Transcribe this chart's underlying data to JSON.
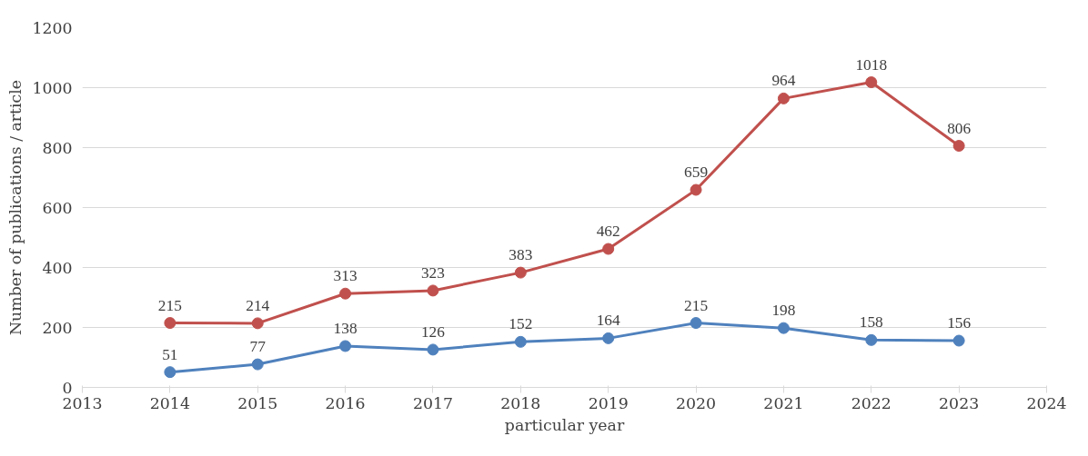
{
  "chart_data": {
    "type": "line",
    "xlabel": "particular year",
    "ylabel": "Number of publications / article",
    "x": [
      2014,
      2015,
      2016,
      2017,
      2018,
      2019,
      2020,
      2021,
      2022,
      2023
    ],
    "series": [
      {
        "color": "#4f81bd",
        "values": [
          51,
          77,
          138,
          126,
          152,
          164,
          215,
          198,
          158,
          156
        ]
      },
      {
        "color": "#c0504d",
        "values": [
          215,
          214,
          313,
          323,
          383,
          462,
          659,
          964,
          1018,
          806
        ]
      }
    ],
    "xlim": [
      2013,
      2024
    ],
    "xticks": [
      2013,
      2014,
      2015,
      2016,
      2017,
      2018,
      2019,
      2020,
      2021,
      2022,
      2023,
      2024
    ],
    "ylim": [
      0,
      1200
    ],
    "yticks": [
      0,
      200,
      400,
      600,
      800,
      1000,
      1200
    ],
    "grid": "y",
    "marker": "circle",
    "line_style": "solid",
    "data_labels": true
  }
}
